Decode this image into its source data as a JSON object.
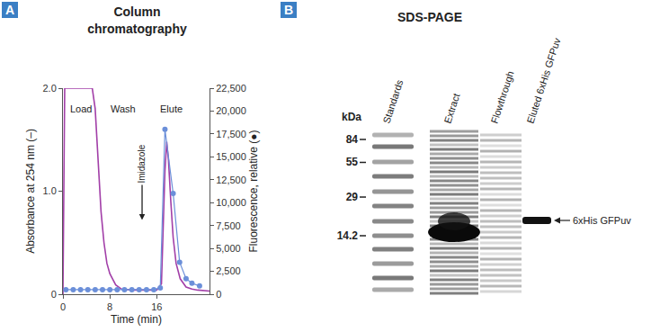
{
  "panels": [
    "A",
    "B"
  ],
  "chart_data": {
    "type": "line",
    "title": "Column chromatography",
    "x_label": "Time (min)",
    "y_label": "Absorbance at 254 nm (–)",
    "y2_label": "Fluorescence, relative (●)",
    "xlim": [
      0,
      25
    ],
    "xticks": [
      0,
      8,
      16
    ],
    "ylim": [
      0,
      2
    ],
    "yticks": [
      0,
      {
        "value": 1,
        "label": "1.0"
      },
      {
        "value": 2,
        "label": "2.0"
      }
    ],
    "y2lim": [
      0,
      22500
    ],
    "y2ticks": [
      0,
      {
        "value": 2500,
        "label": "2,500"
      },
      {
        "value": 5000,
        "label": "5,000"
      },
      {
        "value": 7500,
        "label": "7,500"
      },
      {
        "value": 10000,
        "label": "10,000"
      },
      {
        "value": 12500,
        "label": "12,500"
      },
      {
        "value": 15000,
        "label": "15,000"
      },
      {
        "value": 17500,
        "label": "17,500"
      },
      {
        "value": 20000,
        "label": "20,000"
      },
      {
        "value": 22500,
        "label": "22,500"
      }
    ],
    "grid": false,
    "annotations": [
      {
        "text": "Load",
        "x": 3,
        "y": 1.87
      },
      {
        "text": "Wash",
        "x": 10.2,
        "y": 1.87
      },
      {
        "text": "Elute",
        "x": 18.5,
        "y": 1.87
      }
    ],
    "callouts": [
      {
        "text": "Imidazole",
        "x": 13.5,
        "y": 0.72
      }
    ],
    "series": [
      {
        "color": "#a23fa8",
        "marker": "none",
        "line_style": "solid",
        "axis": "y",
        "x": [
          0,
          0.3,
          1,
          2,
          3,
          4,
          5,
          5.5,
          6,
          6.5,
          7,
          7.5,
          8,
          9,
          10,
          12,
          14,
          16,
          16.8,
          17.1,
          17.4,
          17.7,
          18,
          18.4,
          18.8,
          19.3,
          20,
          21,
          22,
          23,
          25
        ],
        "values": [
          0,
          2,
          2,
          2,
          2,
          2,
          2,
          1.8,
          1.3,
          0.8,
          0.5,
          0.3,
          0.2,
          0.09,
          0.05,
          0.04,
          0.04,
          0.04,
          0.1,
          0.6,
          1.2,
          1.48,
          1.3,
          0.9,
          0.55,
          0.3,
          0.15,
          0.07,
          0.05,
          0.04,
          0.03
        ]
      },
      {
        "color": "#6b8fd9",
        "marker": "circle",
        "line_style": "solid",
        "axis": "y2",
        "x": [
          0.5,
          1.75,
          3,
          4.25,
          5.5,
          6.75,
          8,
          9.25,
          10.5,
          11.75,
          13,
          14.25,
          15.5,
          16.6,
          17.4,
          18.8,
          19.9,
          21,
          22,
          23.3
        ],
        "values": [
          500,
          500,
          500,
          500,
          500,
          500,
          500,
          500,
          500,
          500,
          500,
          500,
          500,
          700,
          18000,
          11000,
          3500,
          1700,
          1200,
          900
        ]
      }
    ]
  },
  "gel": {
    "title": "SDS-PAGE",
    "unit": "kDa",
    "lanes": [
      "Standards",
      "Extract",
      "Flowthrough",
      "Eluted 6xHis GFPuv"
    ],
    "markers": [
      84,
      55,
      29,
      14.2
    ],
    "band_label": "6xHis GFPuv"
  }
}
